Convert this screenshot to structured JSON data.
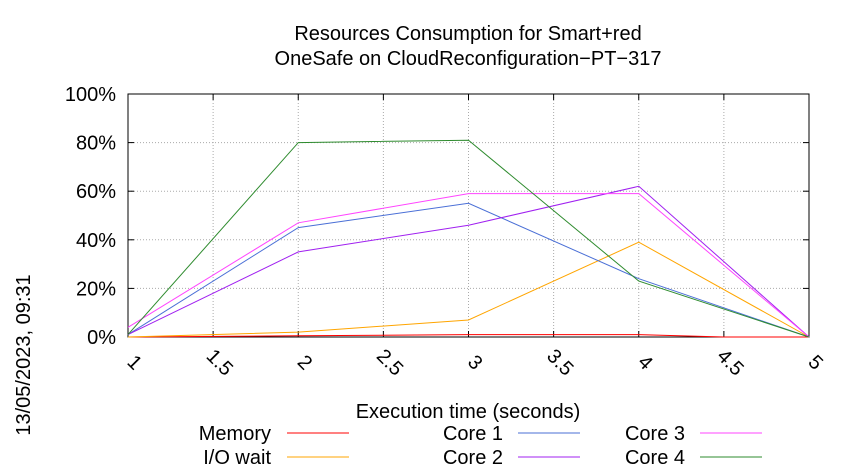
{
  "chart_data": {
    "type": "line",
    "title_line1": "Resources Consumption for Smart+red",
    "title_line2": "OneSafe on CloudReconfiguration−PT−317",
    "xlabel": "Execution time (seconds)",
    "ylabel": "",
    "side_label": "13/05/2023, 09:31",
    "xlim": [
      1,
      5
    ],
    "ylim": [
      0,
      100
    ],
    "x_ticks": [
      "1",
      "1.5",
      "2",
      "2.5",
      "3",
      "3.5",
      "4",
      "4.5",
      "5"
    ],
    "y_ticks": [
      "0%",
      "20%",
      "40%",
      "60%",
      "80%",
      "100%"
    ],
    "grid": true,
    "legend_position": "bottom",
    "series": [
      {
        "name": "Memory",
        "color": "#ff0000",
        "x": [
          1,
          2,
          3,
          4,
          4.5,
          5
        ],
        "y": [
          0,
          0.5,
          1,
          1,
          0,
          0
        ]
      },
      {
        "name": "I/O wait",
        "color": "#ffa500",
        "x": [
          1,
          2,
          3,
          4,
          5
        ],
        "y": [
          0,
          2,
          7,
          39,
          0
        ]
      },
      {
        "name": "Core 1",
        "color": "#4a6fd6",
        "x": [
          1,
          2,
          3,
          4,
          5
        ],
        "y": [
          1,
          45,
          55,
          24,
          0
        ]
      },
      {
        "name": "Core 2",
        "color": "#a020f0",
        "x": [
          1,
          2,
          3,
          4,
          5
        ],
        "y": [
          1,
          35,
          46,
          62,
          0
        ]
      },
      {
        "name": "Core 3",
        "color": "#ff44ff",
        "x": [
          1,
          2,
          3,
          4,
          5
        ],
        "y": [
          4,
          47,
          59,
          59,
          0
        ]
      },
      {
        "name": "Core 4",
        "color": "#2e8b2e",
        "x": [
          1,
          2,
          3,
          4,
          5
        ],
        "y": [
          1,
          80,
          81,
          23,
          0
        ]
      }
    ]
  }
}
